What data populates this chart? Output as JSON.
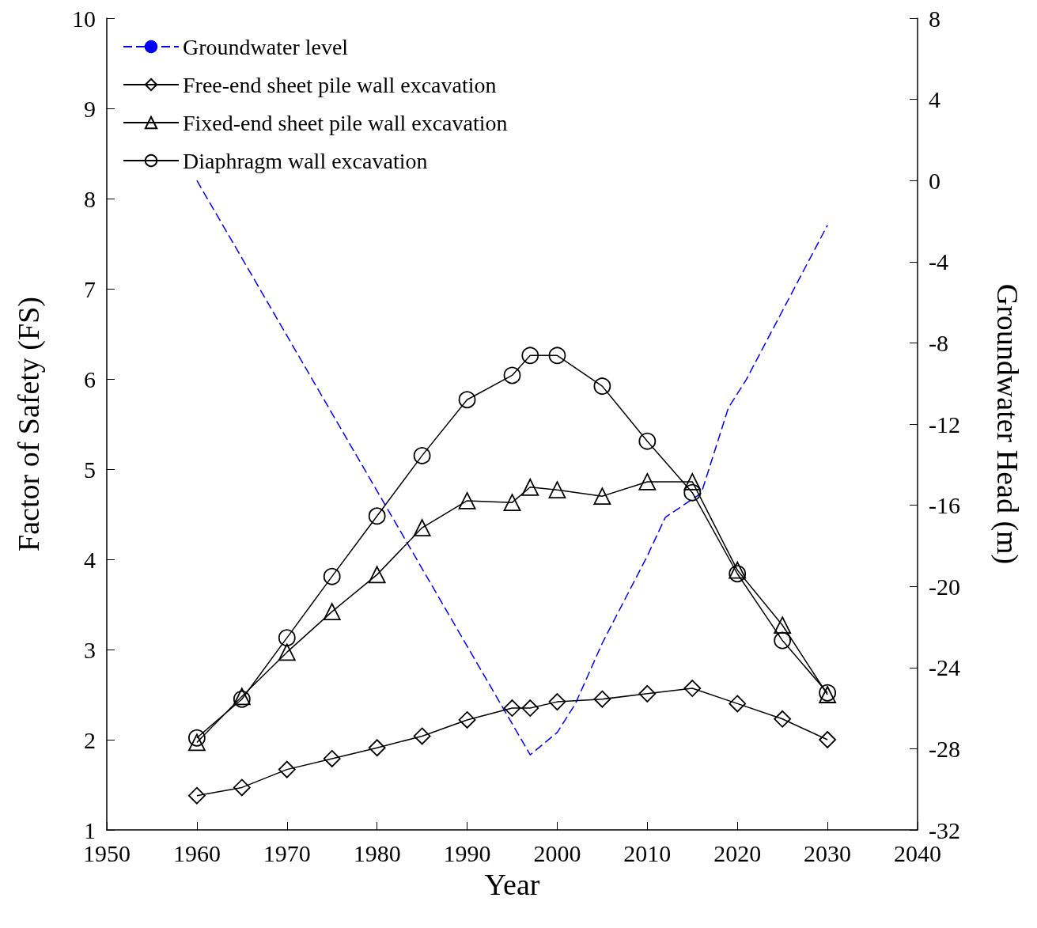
{
  "chart_data": {
    "type": "line",
    "xlabel": "Year",
    "ylabel": "Factor of Safety (FS)",
    "y2label": "Groundwater Head (m)",
    "xlim": [
      1950,
      2040
    ],
    "xticks": [
      1950,
      1960,
      1970,
      1980,
      1990,
      2000,
      2010,
      2020,
      2030,
      2040
    ],
    "ylim": [
      1,
      10
    ],
    "yticks": [
      1,
      2,
      3,
      4,
      5,
      6,
      7,
      8,
      9,
      10
    ],
    "y2lim": [
      -32,
      8
    ],
    "y2ticks": [
      -32,
      -28,
      -24,
      -20,
      -16,
      -12,
      -8,
      -4,
      0,
      4,
      8
    ],
    "legend": "top left",
    "grid": false,
    "series": [
      {
        "name": "Groundwater level",
        "color": "#0000ff",
        "axis": "y2",
        "marker": "none",
        "line_style": "dashed",
        "x": [
          1960,
          1997,
          2000,
          2002,
          2005,
          2010,
          2012,
          2016,
          2019,
          2021,
          2030
        ],
        "values": [
          0,
          -28.3,
          -27.2,
          -25.8,
          -22.8,
          -18.5,
          -16.6,
          -15.4,
          -11.2,
          -9.8,
          -2.2
        ]
      },
      {
        "name": "Free-end sheet pile wall excavation",
        "color": "#000000",
        "marker": "diamond",
        "line_style": "solid",
        "x": [
          1960,
          1965,
          1970,
          1975,
          1980,
          1985,
          1990,
          1995,
          1997,
          2000,
          2005,
          2010,
          2015,
          2020,
          2025,
          2030
        ],
        "values": [
          1.38,
          1.47,
          1.67,
          1.79,
          1.91,
          2.04,
          2.22,
          2.35,
          2.35,
          2.42,
          2.45,
          2.51,
          2.57,
          2.4,
          2.23,
          2.0
        ]
      },
      {
        "name": "Fixed-end sheet pile wall excavation",
        "color": "#000000",
        "marker": "triangle",
        "line_style": "solid",
        "x": [
          1960,
          1965,
          1970,
          1975,
          1980,
          1985,
          1990,
          1995,
          1997,
          2000,
          2005,
          2010,
          2015,
          2020,
          2025,
          2030
        ],
        "values": [
          1.97,
          2.48,
          2.97,
          3.42,
          3.83,
          4.35,
          4.65,
          4.63,
          4.8,
          4.77,
          4.7,
          4.86,
          4.86,
          3.88,
          3.27,
          2.5
        ]
      },
      {
        "name": "Diaphragm wall excavation",
        "color": "#000000",
        "marker": "circle",
        "line_style": "solid",
        "x": [
          1960,
          1965,
          1970,
          1975,
          1980,
          1985,
          1990,
          1995,
          1997,
          2000,
          2005,
          2010,
          2015,
          2020,
          2025,
          2030
        ],
        "values": [
          2.02,
          2.45,
          3.13,
          3.81,
          4.48,
          5.15,
          5.77,
          6.04,
          6.26,
          6.26,
          5.92,
          5.31,
          4.74,
          3.84,
          3.1,
          2.52
        ]
      }
    ]
  }
}
